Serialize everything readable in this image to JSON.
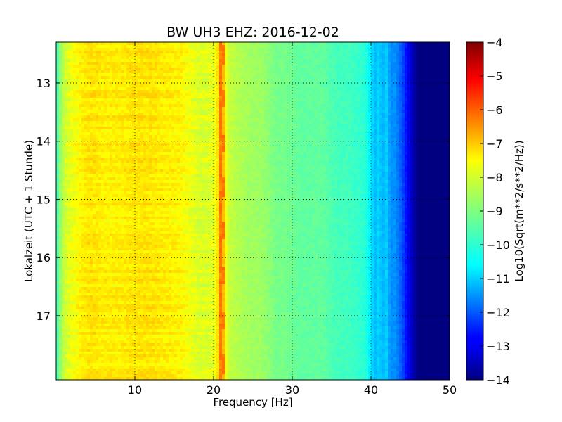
{
  "chart_data": {
    "type": "heatmap",
    "title": "BW UH3 EHZ: 2016-12-02",
    "xlabel": "Frequency [Hz]",
    "ylabel": "Lokalzeit (UTC + 1 Stunde)",
    "colorbar_label": "Log10(Sqrt(m**2/s**2/Hz))",
    "xlim": [
      0,
      50
    ],
    "ylim": [
      12.3,
      18.1
    ],
    "x_ticks": [
      10,
      20,
      30,
      40,
      50
    ],
    "x_tick_labels": [
      "10",
      "20",
      "30",
      "40",
      "50"
    ],
    "y_ticks": [
      13,
      14,
      15,
      16,
      17
    ],
    "y_tick_labels": [
      "13",
      "14",
      "15",
      "16",
      "17"
    ],
    "colorbar_range": [
      -14,
      -4
    ],
    "colorbar_ticks": [
      -4,
      -5,
      -6,
      -7,
      -8,
      -9,
      -10,
      -11,
      -12,
      -13,
      -14
    ],
    "colorbar_tick_labels": [
      "−4",
      "−5",
      "−6",
      "−7",
      "−8",
      "−9",
      "−10",
      "−11",
      "−12",
      "−13",
      "−14"
    ],
    "colormap": "jet",
    "grid": true,
    "spectrum_profile": {
      "frequency_hz": [
        0,
        0.5,
        1,
        2,
        3,
        4,
        5,
        6,
        8,
        10,
        12,
        14,
        16,
        17,
        18,
        19,
        20,
        20.5,
        21,
        21.5,
        22,
        23,
        24,
        25,
        26,
        27,
        28,
        29,
        30,
        31,
        32,
        33,
        34,
        35,
        36,
        37,
        38,
        39,
        39.5,
        40,
        40.5,
        41,
        41.5,
        42,
        42.5,
        43,
        43.5,
        44,
        44.5,
        45,
        45.5,
        46,
        47,
        48,
        49,
        50
      ],
      "log10_psd": [
        -9.8,
        -8.8,
        -8.3,
        -7.9,
        -7.7,
        -7.5,
        -7.5,
        -7.6,
        -7.6,
        -7.5,
        -7.5,
        -7.6,
        -7.7,
        -7.9,
        -8.1,
        -8.1,
        -8.0,
        -7.6,
        -6.4,
        -7.8,
        -8.3,
        -8.5,
        -8.6,
        -8.7,
        -8.7,
        -8.9,
        -9.1,
        -9.1,
        -9.2,
        -9.3,
        -9.3,
        -9.3,
        -9.3,
        -9.5,
        -9.6,
        -9.6,
        -9.7,
        -9.8,
        -10.0,
        -10.5,
        -10.9,
        -10.6,
        -11.0,
        -10.7,
        -11.4,
        -11.3,
        -11.6,
        -12.0,
        -12.6,
        -13.1,
        -13.6,
        -14.0,
        -14.0,
        -14.0,
        -14.0,
        -14.0
      ]
    },
    "line_feature_hz": 21
  }
}
